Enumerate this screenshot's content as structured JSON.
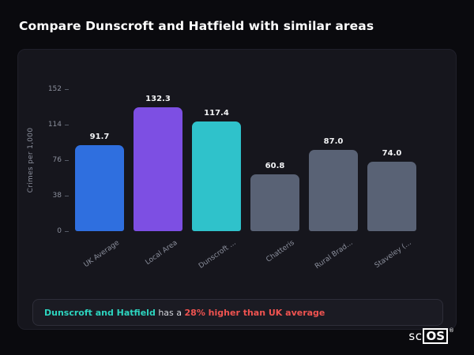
{
  "title": "Compare Dunscroft and Hatfield with similar areas",
  "note": {
    "area_label": "Dunscroft and Hatfield",
    "middle": " has a ",
    "stat": "28% higher than UK average"
  },
  "logo": {
    "prefix": "sc",
    "boxed": "OS",
    "registered": "®"
  },
  "colors": {
    "page_background": "#0a0a0e",
    "card_background": "#16161d",
    "highlight_teal": "#2dd4bf",
    "alert_red": "#ef5350",
    "axis_text": "#8b8f9c"
  },
  "chart_data": {
    "type": "bar",
    "title": "",
    "xlabel": "",
    "ylabel": "Crimes per 1,000",
    "categories": [
      "UK Average",
      "Local Area",
      "Dunscroft ...",
      "Chatteris",
      "Rural Brad...",
      "Staveley (..."
    ],
    "values": [
      91.7,
      132.3,
      117.4,
      60.8,
      87.0,
      74.0
    ],
    "value_labels": [
      "91.7",
      "132.3",
      "117.4",
      "60.8",
      "87.0",
      "74.0"
    ],
    "bar_colors": [
      "#2f6fdf",
      "#7d4fe3",
      "#2fc2cb",
      "#596275",
      "#596275",
      "#596275"
    ],
    "ylim": [
      0,
      152
    ],
    "yticks": [
      0,
      38,
      76,
      114,
      152
    ],
    "grid": false,
    "legend": false
  }
}
